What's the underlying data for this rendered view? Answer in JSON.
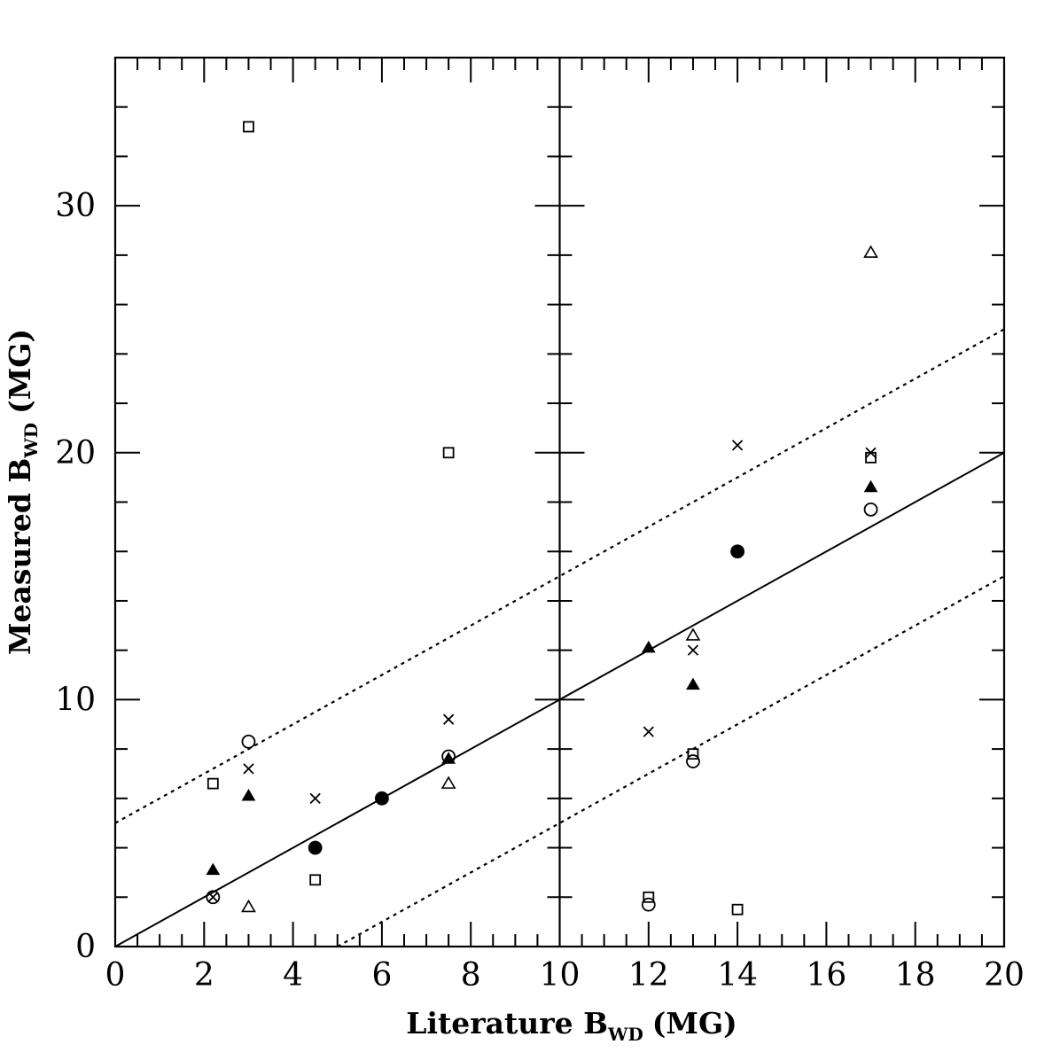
{
  "chart_data": {
    "type": "scatter",
    "xlabel": {
      "main": "Literature B",
      "sub": "WD",
      "unit": "(MG)"
    },
    "ylabel": {
      "main": "Measured B",
      "sub": "WD",
      "unit": "(MG)"
    },
    "xlim": [
      0,
      20
    ],
    "ylim": [
      0,
      36
    ],
    "panels": [
      {
        "name": "left",
        "xlim": [
          0,
          10
        ]
      },
      {
        "name": "right",
        "xlim": [
          10,
          20
        ]
      }
    ],
    "x_ticks": [
      "0",
      "2",
      "4",
      "6",
      "8",
      "10",
      "12",
      "14",
      "16",
      "18",
      "20"
    ],
    "y_ticks": [
      "0",
      "10",
      "20",
      "30"
    ],
    "lines": [
      {
        "kind": "identity",
        "style": "solid",
        "points": [
          [
            0,
            0
          ],
          [
            20,
            20
          ]
        ]
      },
      {
        "kind": "upper-bound",
        "style": "dotted",
        "points": [
          [
            0,
            5
          ],
          [
            20,
            25
          ]
        ]
      },
      {
        "kind": "lower-bound",
        "style": "dotted",
        "points": [
          [
            5,
            0
          ],
          [
            20,
            15
          ]
        ]
      }
    ],
    "series": [
      {
        "marker": "open-square",
        "points": [
          [
            2.2,
            6.6
          ],
          [
            3.0,
            33.2
          ],
          [
            4.5,
            2.7
          ],
          [
            7.5,
            20.0
          ],
          [
            12.0,
            2.0
          ],
          [
            13.0,
            7.8
          ],
          [
            14.0,
            1.5
          ],
          [
            17.0,
            19.8
          ]
        ]
      },
      {
        "marker": "cross",
        "points": [
          [
            2.2,
            2.0
          ],
          [
            3.0,
            7.2
          ],
          [
            4.5,
            6.0
          ],
          [
            7.5,
            9.2
          ],
          [
            12.0,
            8.7
          ],
          [
            13.0,
            12.0
          ],
          [
            14.0,
            20.3
          ],
          [
            17.0,
            20.0
          ]
        ]
      },
      {
        "marker": "open-circle",
        "points": [
          [
            2.2,
            2.0
          ],
          [
            3.0,
            8.3
          ],
          [
            4.5,
            4.0
          ],
          [
            6.0,
            6.0
          ],
          [
            7.5,
            7.7
          ],
          [
            12.0,
            1.7
          ],
          [
            13.0,
            7.5
          ],
          [
            14.0,
            16.0
          ],
          [
            17.0,
            17.7
          ]
        ]
      },
      {
        "marker": "filled-triangle",
        "points": [
          [
            2.2,
            3.1
          ],
          [
            3.0,
            6.1
          ],
          [
            7.5,
            7.6
          ],
          [
            12.0,
            12.1
          ],
          [
            13.0,
            10.6
          ],
          [
            17.0,
            18.6
          ]
        ]
      },
      {
        "marker": "open-triangle",
        "points": [
          [
            3.0,
            1.6
          ],
          [
            7.5,
            6.6
          ],
          [
            13.0,
            12.6
          ],
          [
            17.0,
            28.1
          ]
        ]
      },
      {
        "marker": "filled-circle",
        "points": [
          [
            4.5,
            4.0
          ],
          [
            6.0,
            6.0
          ],
          [
            14.0,
            16.0
          ]
        ]
      }
    ]
  }
}
